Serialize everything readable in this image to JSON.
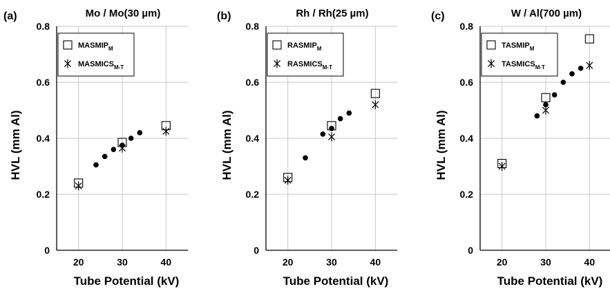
{
  "chart_data": [
    {
      "type": "scatter",
      "panel_label": "(a)",
      "title": "Mo / Mo(30 µm)",
      "xlabel": "Tube Potential (kV)",
      "ylabel": "HVL (mm Al)",
      "xlim": [
        15,
        45
      ],
      "ylim": [
        0,
        0.8
      ],
      "xticks": [
        {
          "value": 20,
          "label": "20"
        },
        {
          "value": 30,
          "label": "30"
        },
        {
          "value": 40,
          "label": "40"
        }
      ],
      "yticks": [
        {
          "value": 0,
          "label": "0"
        },
        {
          "value": 0.2,
          "label": "0.2"
        },
        {
          "value": 0.4,
          "label": "0.4"
        },
        {
          "value": 0.6,
          "label": "0.6"
        },
        {
          "value": 0.8,
          "label": "0.8"
        }
      ],
      "grid": true,
      "legend_position": "top-left",
      "series": [
        {
          "name": "MASMIP",
          "subscript": "M",
          "marker": "square",
          "x": [
            20,
            30,
            40
          ],
          "y": [
            0.24,
            0.385,
            0.445
          ]
        },
        {
          "name": "MASMICS",
          "subscript": "M-T",
          "marker": "asterisk",
          "x": [
            20,
            30,
            40
          ],
          "y": [
            0.23,
            0.365,
            0.425
          ]
        },
        {
          "name": "",
          "marker": "dot",
          "x": [
            24,
            26,
            28,
            30,
            32,
            34
          ],
          "y": [
            0.305,
            0.335,
            0.36,
            0.375,
            0.4,
            0.42
          ]
        }
      ]
    },
    {
      "type": "scatter",
      "panel_label": "(b)",
      "title": "Rh / Rh(25 µm)",
      "xlabel": "Tube Potential (kV)",
      "ylabel": "HVL (mm Al)",
      "xlim": [
        15,
        45
      ],
      "ylim": [
        0,
        0.8
      ],
      "xticks": [
        {
          "value": 20,
          "label": "20"
        },
        {
          "value": 30,
          "label": "30"
        },
        {
          "value": 40,
          "label": "40"
        }
      ],
      "yticks": [
        {
          "value": 0,
          "label": "0"
        },
        {
          "value": 0.2,
          "label": "0.2"
        },
        {
          "value": 0.4,
          "label": "0.4"
        },
        {
          "value": 0.6,
          "label": "0.6"
        },
        {
          "value": 0.8,
          "label": "0.8"
        }
      ],
      "grid": true,
      "legend_position": "top-left",
      "series": [
        {
          "name": "RASMIP",
          "subscript": "M",
          "marker": "square",
          "x": [
            20,
            30,
            40
          ],
          "y": [
            0.26,
            0.445,
            0.56
          ]
        },
        {
          "name": "RASMICS",
          "subscript": "M-T",
          "marker": "asterisk",
          "x": [
            20,
            30,
            40
          ],
          "y": [
            0.25,
            0.405,
            0.52
          ]
        },
        {
          "name": "",
          "marker": "dot",
          "x": [
            24,
            28,
            30,
            32,
            34
          ],
          "y": [
            0.33,
            0.415,
            0.435,
            0.47,
            0.49
          ]
        }
      ]
    },
    {
      "type": "scatter",
      "panel_label": "(c)",
      "title": "W / Al(700 µm)",
      "xlabel": "Tube Potential (kV)",
      "ylabel": "HVL (mm Al)",
      "xlim": [
        15,
        45
      ],
      "ylim": [
        0,
        0.8
      ],
      "xticks": [
        {
          "value": 20,
          "label": "20"
        },
        {
          "value": 30,
          "label": "30"
        },
        {
          "value": 40,
          "label": "40"
        }
      ],
      "yticks": [
        {
          "value": 0,
          "label": "0"
        },
        {
          "value": 0.2,
          "label": "0.2"
        },
        {
          "value": 0.4,
          "label": "0.4"
        },
        {
          "value": 0.6,
          "label": "0.6"
        },
        {
          "value": 0.8,
          "label": "0.8"
        }
      ],
      "grid": true,
      "legend_position": "top-left",
      "series": [
        {
          "name": "TASMIP",
          "subscript": "M",
          "marker": "square",
          "x": [
            20,
            30,
            40
          ],
          "y": [
            0.31,
            0.545,
            0.755
          ]
        },
        {
          "name": "TASMICS",
          "subscript": "M-T",
          "marker": "asterisk",
          "x": [
            20,
            30,
            40
          ],
          "y": [
            0.3,
            0.5,
            0.66
          ]
        },
        {
          "name": "",
          "marker": "dot",
          "x": [
            28,
            30,
            32,
            34,
            36,
            38
          ],
          "y": [
            0.48,
            0.52,
            0.555,
            0.6,
            0.63,
            0.65
          ]
        }
      ]
    }
  ]
}
